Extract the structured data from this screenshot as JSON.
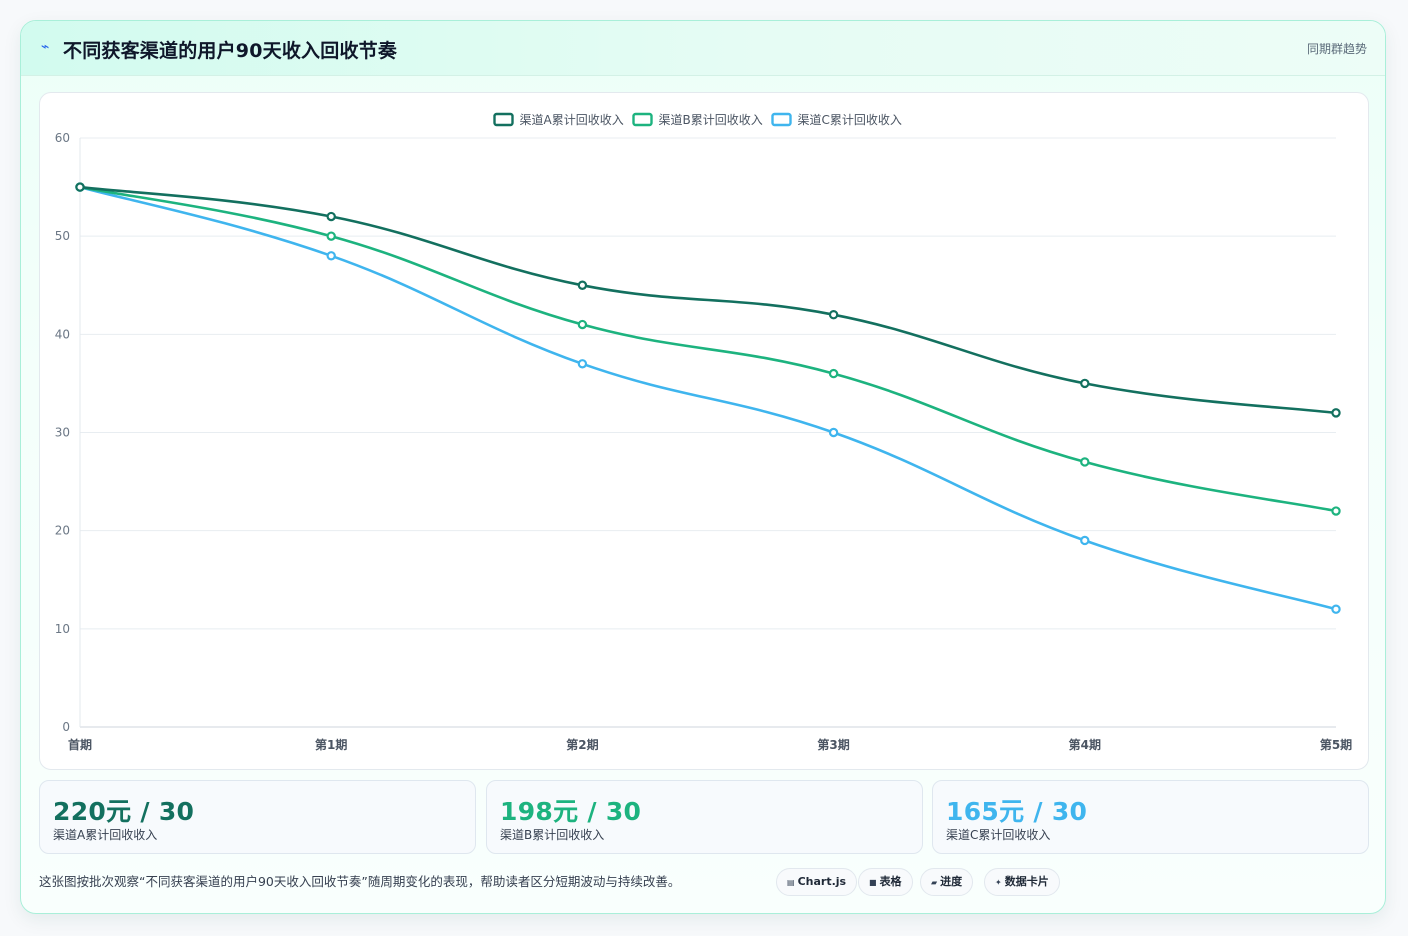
{
  "header": {
    "title": "不同获客渠道的用户90天收入回收节奏",
    "icon": "lightning-icon",
    "right_label": "同期群趋势"
  },
  "chart_data": {
    "type": "line",
    "categories": [
      "首期",
      "第1期",
      "第2期",
      "第3期",
      "第4期",
      "第5期"
    ],
    "ylim": [
      0,
      60
    ],
    "yticks": [
      0,
      10,
      20,
      30,
      40,
      50,
      60
    ],
    "grid": true,
    "legend_position": "top-center",
    "series": [
      {
        "name": "渠道A累计回收收入",
        "color": "#13705f",
        "values": [
          55,
          52,
          45,
          42,
          35,
          32
        ]
      },
      {
        "name": "渠道B累计回收收入",
        "color": "#1db37f",
        "values": [
          55,
          50,
          41,
          36,
          27,
          22
        ]
      },
      {
        "name": "渠道C累计回收收入",
        "color": "#3fb5ee",
        "values": [
          55,
          48,
          37,
          30,
          19,
          12
        ]
      }
    ]
  },
  "stats": [
    {
      "value": "220元 / 30",
      "label": "渠道A累计回收收入",
      "color": "#13705f"
    },
    {
      "value": "198元 / 30",
      "label": "渠道B累计回收收入",
      "color": "#1db37f"
    },
    {
      "value": "165元 / 30",
      "label": "渠道C累计回收收入",
      "color": "#3fb5ee"
    }
  ],
  "footer": {
    "note": "这张图按批次观察“不同获客渠道的用户90天收入回收节奏”随周期变化的表现，帮助读者区分短期波动与持续改善。",
    "chips": [
      {
        "label": "Chart.js",
        "icon": "chart-icon"
      },
      {
        "label": "表格",
        "icon": "table-icon"
      },
      {
        "label": "进度",
        "icon": "progress-icon"
      },
      {
        "label": "数据卡片",
        "icon": "sparkle-icon"
      }
    ]
  }
}
